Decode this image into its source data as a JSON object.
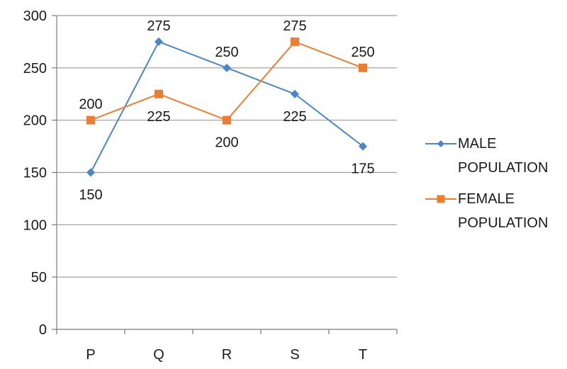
{
  "chart_data": {
    "type": "line",
    "categories": [
      "P",
      "Q",
      "R",
      "S",
      "T"
    ],
    "ylim": [
      0,
      300
    ],
    "yticks": [
      0,
      50,
      100,
      150,
      200,
      250,
      300
    ],
    "grid": true,
    "legend_position": "right",
    "series": [
      {
        "name": "MALE POPULATION",
        "color": "#4a86c8",
        "marker": "diamond",
        "values": [
          150,
          275,
          250,
          225,
          175
        ],
        "labels": [
          "150",
          "275",
          "250",
          "225",
          "175"
        ]
      },
      {
        "name": "FEMALE POPULATION",
        "color": "#ed7d31",
        "marker": "square",
        "values": [
          200,
          225,
          200,
          275,
          250
        ],
        "labels": [
          "200",
          "225",
          "200",
          "275",
          "250"
        ]
      }
    ]
  }
}
